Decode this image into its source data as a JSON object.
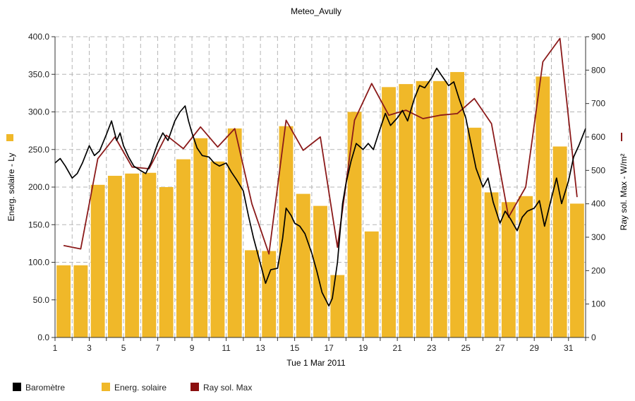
{
  "chart_data": {
    "type": "bar",
    "title": "Meteo_Avully",
    "xlabel": "Tue 1 Mar 2011",
    "ylabel_left": "Energ. solaire - Ly",
    "ylabel_right": "Ray sol. Max - W/m²",
    "left_axis": {
      "min": 0,
      "max": 400,
      "ticks": [
        "0.0",
        "50.0",
        "100.0",
        "150.0",
        "200.0",
        "250.0",
        "300.0",
        "350.0",
        "400.0"
      ]
    },
    "right_axis": {
      "min": 0,
      "max": 900,
      "ticks": [
        "0",
        "100",
        "200",
        "300",
        "400",
        "500",
        "600",
        "700",
        "800",
        "900"
      ]
    },
    "x_axis": {
      "min": 1,
      "max": 32,
      "ticks": [
        "1",
        "3",
        "5",
        "7",
        "9",
        "11",
        "13",
        "15",
        "17",
        "19",
        "21",
        "23",
        "25",
        "27",
        "29",
        "31"
      ]
    },
    "grid": true,
    "legend_position": "bottom-left",
    "legend": [
      {
        "label": "Baromètre",
        "color": "#000000",
        "kind": "square"
      },
      {
        "label": "Energ. solaire",
        "color": "#f0b829",
        "kind": "square"
      },
      {
        "label": "Ray sol. Max",
        "color": "#8b0f0f",
        "kind": "square"
      }
    ],
    "colors": {
      "bars": "#f0b829",
      "barometer": "#000000",
      "ray_max": "#8b1a1a",
      "grid": "#b5b5b5"
    },
    "series": [
      {
        "name": "Energ. solaire",
        "axis": "left",
        "kind": "bar",
        "x": [
          1,
          2,
          3,
          4,
          5,
          6,
          7,
          8,
          9,
          10,
          11,
          12,
          13,
          14,
          15,
          16,
          17,
          18,
          19,
          20,
          21,
          22,
          23,
          24,
          25,
          26,
          27,
          28,
          29,
          30,
          31
        ],
        "values": [
          96,
          96,
          203,
          215,
          218,
          219,
          200,
          237,
          265,
          234,
          278,
          116,
          115,
          281,
          191,
          175,
          83,
          300,
          141,
          333,
          337,
          341,
          341,
          353,
          279,
          193,
          180,
          188,
          347,
          254,
          178
        ]
      },
      {
        "name": "Ray sol. Max",
        "axis": "right",
        "kind": "line",
        "x": [
          1,
          2,
          3,
          4,
          5,
          6,
          7,
          8,
          9,
          10,
          11,
          12,
          13,
          14,
          15,
          16,
          17,
          18,
          19,
          20,
          21,
          22,
          23,
          24,
          25,
          26,
          27,
          28,
          29,
          30,
          31
        ],
        "values": [
          275,
          265,
          535,
          600,
          510,
          505,
          605,
          565,
          630,
          570,
          625,
          400,
          250,
          650,
          560,
          600,
          270,
          650,
          760,
          665,
          680,
          655,
          665,
          670,
          715,
          640,
          360,
          450,
          825,
          895,
          420
        ]
      },
      {
        "name": "Baromètre",
        "axis": "left",
        "kind": "line",
        "x": [
          1.0,
          1.3,
          1.6,
          2.0,
          2.3,
          2.6,
          3.0,
          3.3,
          3.6,
          4.0,
          4.3,
          4.6,
          4.8,
          5.0,
          5.3,
          5.6,
          6.0,
          6.3,
          6.6,
          7.0,
          7.3,
          7.6,
          8.0,
          8.3,
          8.6,
          8.8,
          9.0,
          9.3,
          9.6,
          10.0,
          10.3,
          10.6,
          11.0,
          11.3,
          11.6,
          12.0,
          12.3,
          12.6,
          13.0,
          13.3,
          13.6,
          14.0,
          14.3,
          14.5,
          14.8,
          15.0,
          15.3,
          15.6,
          16.0,
          16.3,
          16.6,
          17.0,
          17.2,
          17.5,
          17.8,
          18.0,
          18.3,
          18.6,
          19.0,
          19.3,
          19.6,
          20.0,
          20.3,
          20.6,
          21.0,
          21.3,
          21.6,
          22.0,
          22.3,
          22.6,
          23.0,
          23.3,
          23.6,
          24.0,
          24.3,
          24.6,
          25.0,
          25.3,
          25.6,
          26.0,
          26.3,
          26.6,
          27.0,
          27.3,
          27.6,
          28.0,
          28.3,
          28.6,
          29.0,
          29.3,
          29.6,
          30.0,
          30.3,
          30.6,
          31.0,
          31.3,
          31.6,
          32.0
        ],
        "values": [
          232,
          238,
          228,
          212,
          218,
          232,
          255,
          242,
          248,
          270,
          288,
          262,
          272,
          255,
          240,
          228,
          222,
          218,
          232,
          258,
          272,
          262,
          288,
          300,
          308,
          288,
          272,
          252,
          242,
          240,
          232,
          228,
          232,
          220,
          210,
          195,
          162,
          132,
          98,
          72,
          90,
          92,
          132,
          172,
          162,
          152,
          148,
          138,
          112,
          88,
          60,
          42,
          52,
          100,
          178,
          205,
          235,
          258,
          250,
          258,
          250,
          278,
          298,
          282,
          292,
          302,
          288,
          318,
          335,
          332,
          345,
          358,
          348,
          335,
          340,
          318,
          292,
          258,
          225,
          200,
          212,
          180,
          152,
          168,
          158,
          142,
          160,
          168,
          172,
          182,
          148,
          185,
          212,
          178,
          208,
          240,
          255,
          278
        ]
      }
    ]
  }
}
